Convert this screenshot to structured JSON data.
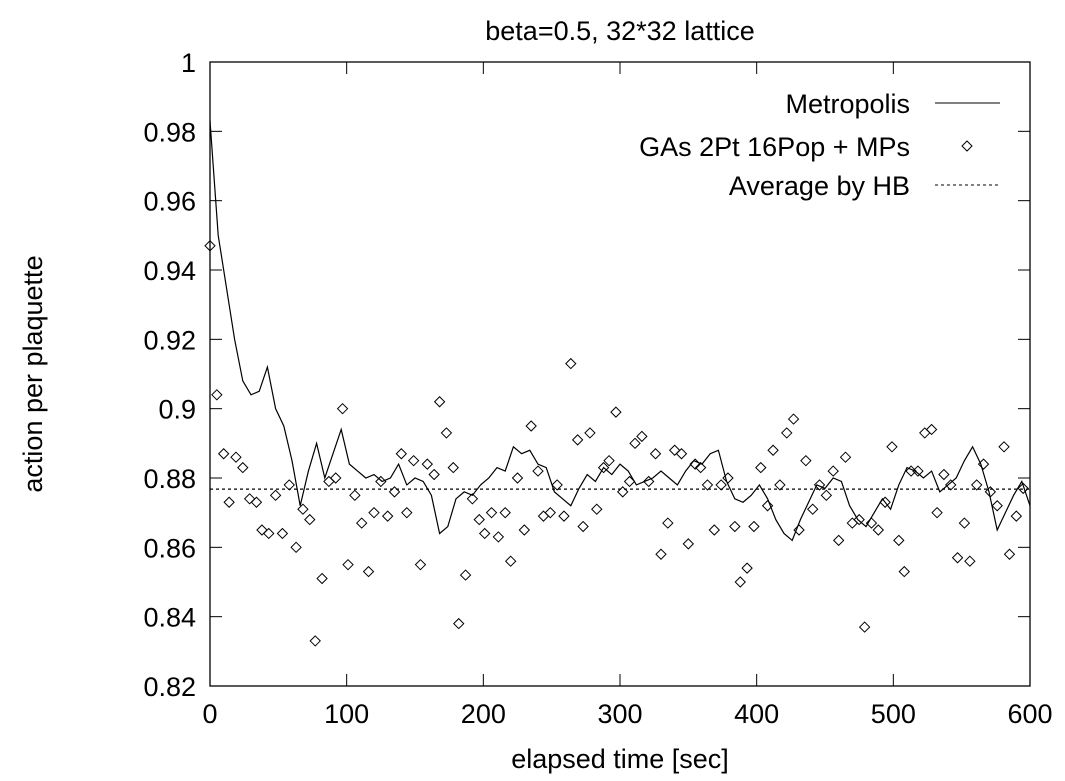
{
  "chart_data": {
    "type": "line",
    "title": "beta=0.5, 32*32 lattice",
    "x_label": "elapsed time [sec]",
    "y_label": "action per plaquette",
    "xlim": [
      0,
      600
    ],
    "xticks": [
      0,
      100,
      200,
      300,
      400,
      500,
      600
    ],
    "ylim": [
      0.82,
      1
    ],
    "yticks": [
      0.82,
      0.84,
      0.86,
      0.88,
      0.9,
      0.92,
      0.94,
      0.96,
      0.98,
      1
    ],
    "legend_position": "upper-right",
    "series": [
      {
        "name": "Metropolis",
        "mode": "line",
        "color": "#000000",
        "x": [
          0,
          6,
          12,
          18,
          24,
          30,
          36,
          42,
          48,
          54,
          60,
          66,
          72,
          78,
          84,
          90,
          96,
          102,
          108,
          114,
          120,
          126,
          132,
          138,
          144,
          150,
          156,
          162,
          168,
          174,
          180,
          186,
          192,
          198,
          204,
          210,
          216,
          222,
          228,
          234,
          240,
          246,
          252,
          258,
          264,
          270,
          276,
          282,
          288,
          294,
          300,
          306,
          312,
          318,
          324,
          330,
          336,
          342,
          348,
          354,
          360,
          366,
          372,
          378,
          384,
          390,
          396,
          402,
          408,
          414,
          420,
          426,
          432,
          438,
          444,
          450,
          456,
          462,
          468,
          474,
          480,
          486,
          492,
          498,
          504,
          510,
          516,
          522,
          528,
          534,
          540,
          546,
          552,
          558,
          564,
          570,
          576,
          582,
          588,
          594,
          600
        ],
        "values": [
          0.983,
          0.95,
          0.935,
          0.92,
          0.908,
          0.904,
          0.905,
          0.912,
          0.9,
          0.895,
          0.885,
          0.872,
          0.882,
          0.89,
          0.88,
          0.887,
          0.894,
          0.884,
          0.882,
          0.88,
          0.881,
          0.879,
          0.88,
          0.884,
          0.878,
          0.88,
          0.879,
          0.875,
          0.864,
          0.866,
          0.874,
          0.876,
          0.875,
          0.878,
          0.88,
          0.883,
          0.882,
          0.889,
          0.887,
          0.888,
          0.884,
          0.883,
          0.876,
          0.874,
          0.872,
          0.877,
          0.881,
          0.879,
          0.883,
          0.881,
          0.884,
          0.882,
          0.878,
          0.879,
          0.88,
          0.882,
          0.88,
          0.878,
          0.882,
          0.885,
          0.884,
          0.887,
          0.888,
          0.879,
          0.874,
          0.873,
          0.875,
          0.878,
          0.874,
          0.868,
          0.864,
          0.862,
          0.868,
          0.873,
          0.878,
          0.877,
          0.88,
          0.879,
          0.872,
          0.868,
          0.866,
          0.87,
          0.874,
          0.871,
          0.878,
          0.883,
          0.882,
          0.88,
          0.882,
          0.876,
          0.878,
          0.88,
          0.885,
          0.889,
          0.884,
          0.876,
          0.865,
          0.87,
          0.875,
          0.879,
          0.872
        ]
      },
      {
        "name": "GAs 2Pt 16Pop + MPs",
        "mode": "points",
        "color": "#000000",
        "x": [
          0,
          5,
          10,
          14,
          19,
          24,
          29,
          34,
          38,
          43,
          48,
          53,
          58,
          63,
          68,
          73,
          77,
          82,
          87,
          92,
          97,
          101,
          106,
          111,
          116,
          120,
          125,
          130,
          135,
          140,
          144,
          149,
          154,
          159,
          164,
          168,
          173,
          178,
          182,
          187,
          192,
          197,
          201,
          206,
          211,
          216,
          220,
          225,
          230,
          235,
          240,
          244,
          249,
          254,
          259,
          264,
          269,
          273,
          278,
          283,
          288,
          292,
          297,
          302,
          307,
          311,
          316,
          321,
          326,
          330,
          335,
          340,
          345,
          350,
          355,
          359,
          364,
          369,
          374,
          379,
          384,
          388,
          393,
          398,
          403,
          408,
          412,
          417,
          422,
          427,
          431,
          436,
          441,
          446,
          451,
          456,
          460,
          465,
          470,
          475,
          479,
          484,
          489,
          494,
          499,
          504,
          508,
          513,
          518,
          523,
          528,
          532,
          537,
          542,
          547,
          552,
          556,
          561,
          566,
          571,
          576,
          581,
          585,
          590,
          595
        ],
        "values": [
          0.947,
          0.904,
          0.887,
          0.873,
          0.886,
          0.883,
          0.874,
          0.873,
          0.865,
          0.864,
          0.875,
          0.864,
          0.878,
          0.86,
          0.871,
          0.868,
          0.833,
          0.851,
          0.879,
          0.88,
          0.9,
          0.855,
          0.875,
          0.867,
          0.853,
          0.87,
          0.879,
          0.869,
          0.876,
          0.887,
          0.87,
          0.885,
          0.855,
          0.884,
          0.881,
          0.902,
          0.893,
          0.883,
          0.838,
          0.852,
          0.874,
          0.868,
          0.864,
          0.87,
          0.863,
          0.87,
          0.856,
          0.88,
          0.865,
          0.895,
          0.882,
          0.869,
          0.87,
          0.878,
          0.869,
          0.913,
          0.891,
          0.866,
          0.893,
          0.871,
          0.883,
          0.885,
          0.899,
          0.876,
          0.879,
          0.89,
          0.892,
          0.879,
          0.887,
          0.858,
          0.867,
          0.888,
          0.887,
          0.861,
          0.884,
          0.883,
          0.878,
          0.865,
          0.878,
          0.88,
          0.866,
          0.85,
          0.854,
          0.866,
          0.883,
          0.872,
          0.888,
          0.878,
          0.893,
          0.897,
          0.865,
          0.885,
          0.871,
          0.878,
          0.875,
          0.882,
          0.862,
          0.886,
          0.867,
          0.868,
          0.837,
          0.867,
          0.865,
          0.873,
          0.889,
          0.862,
          0.853,
          0.882,
          0.882,
          0.893,
          0.894,
          0.87,
          0.881,
          0.878,
          0.857,
          0.867,
          0.856,
          0.878,
          0.884,
          0.876,
          0.872,
          0.889,
          0.858,
          0.869,
          0.877
        ]
      },
      {
        "name": "Average by HB",
        "mode": "dashed",
        "color": "#000000",
        "x": [
          0,
          600
        ],
        "values": [
          0.8768,
          0.8768
        ]
      }
    ]
  }
}
